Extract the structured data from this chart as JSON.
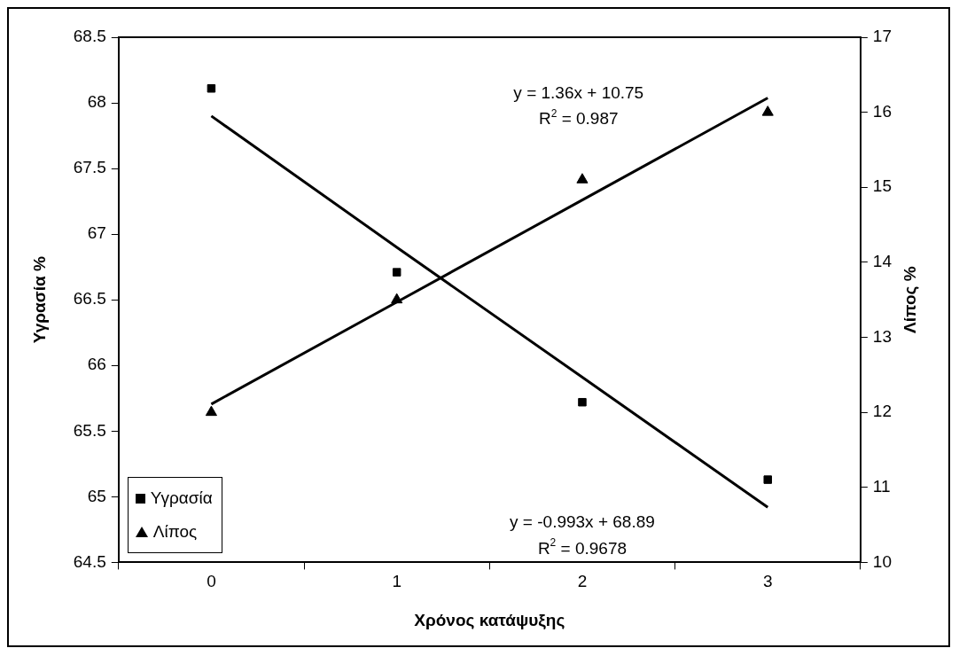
{
  "chart_data": {
    "type": "scatter",
    "xlabel": "Χρόνος κατάψυξης",
    "ylabel": "Υγρασία %",
    "y2label": "Λίπος %",
    "x": [
      0,
      1,
      2,
      3
    ],
    "series": [
      {
        "name": "Υγρασία",
        "color": "#000000",
        "marker": "square",
        "values": [
          68.11,
          66.71,
          65.72,
          65.13
        ]
      },
      {
        "name": "Λίπος",
        "color": "#000000",
        "marker": "triangle",
        "axis": "y2",
        "values": [
          12.0,
          13.5,
          15.1,
          16.0
        ]
      },
      {
        "type": "line",
        "color": "#000000",
        "marker": "none",
        "values": [
          67.9,
          66.9,
          65.91,
          64.92
        ]
      },
      {
        "type": "line",
        "color": "#000000",
        "marker": "none",
        "axis": "y2",
        "values": [
          12.11,
          13.47,
          14.83,
          16.19
        ]
      }
    ],
    "xlim": [
      -0.5,
      3.5
    ],
    "xticks": [
      {
        "value": -0.5,
        "label": null
      },
      0,
      {
        "value": 0.5,
        "label": null
      },
      1,
      {
        "value": 1.5,
        "label": null
      },
      2,
      {
        "value": 2.5,
        "label": null
      },
      3,
      {
        "value": 3.5,
        "label": null
      }
    ],
    "ylim": [
      64.5,
      68.5
    ],
    "yticks": [
      64.5,
      65,
      65.5,
      66,
      66.5,
      67,
      67.5,
      68,
      68.5
    ],
    "y2lim": [
      10,
      17
    ],
    "y2ticks": [
      10,
      11,
      12,
      13,
      14,
      15,
      16,
      17
    ],
    "annotations": [
      "y = 1.36x + 10.75",
      "R$^{2}$ = 0.987",
      "y = -0.993x + 68.89",
      "R$^{2}$ = 0.9678"
    ],
    "legend": "bottom left",
    "grid": false
  }
}
